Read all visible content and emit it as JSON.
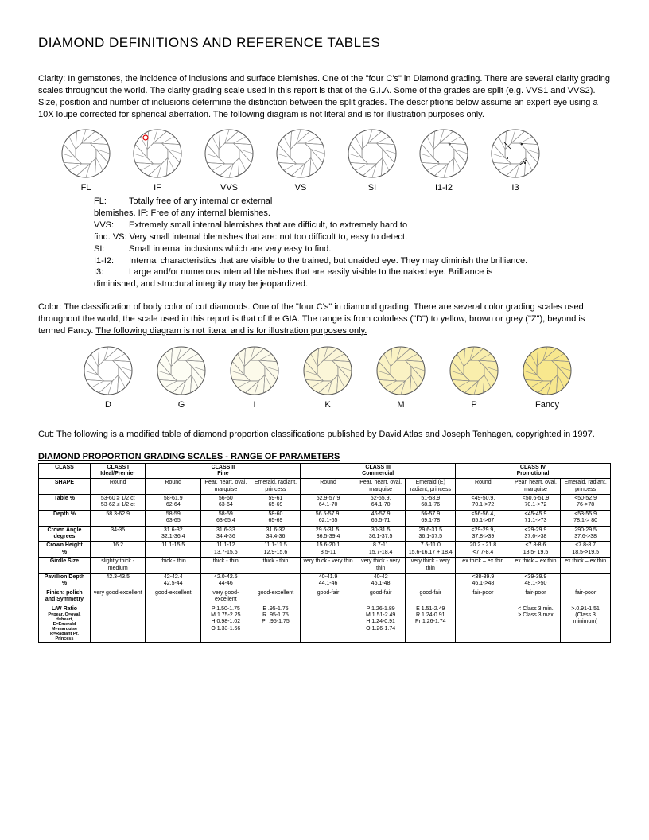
{
  "title": "DIAMOND DEFINITIONS AND REFERENCE TABLES",
  "clarity": {
    "heading": "Clarity:",
    "body": "In gemstones, the incidence of inclusions and surface blemishes. One of the \"four C's\" in Diamond grading. There are several clarity grading scales throughout the world. The clarity grading scale used in this report is that of the G.I.A. Some of the  grades are split (e.g. VVS1 and VVS2). Size, position and number of inclusions determine the distinction between the split  grades. The descriptions below assume an expert eye using a 10X loupe corrected for spherical aberration. The following  diagram is not literal and is for illustration purposes only.",
    "labels": [
      "FL",
      "IF",
      "VVS",
      "VS",
      "SI",
      "I1-I2",
      "I3"
    ],
    "defs": [
      {
        "tag": "FL:",
        "text": "Totally free of any internal or external"
      },
      {
        "tag": "",
        "text": "blemishes.  IF:   Free of any internal blemishes."
      },
      {
        "tag": "VVS:",
        "text": "Extremely small internal blemishes that are difficult, to extremely hard to"
      },
      {
        "tag": "",
        "text": "find.  VS: Very small internal blemishes that are: not too difficult to, easy to detect."
      },
      {
        "tag": "SI:",
        "text": "Small internal inclusions which are very easy to find."
      },
      {
        "tag": "I1-I2:",
        "text": "Internal characteristics that are visible to the trained, but unaided eye. They may diminish the brilliance."
      },
      {
        "tag": "I3:",
        "text": "Large and/or numerous internal blemishes that are easily visible to the naked eye. Brilliance is"
      },
      {
        "tag": "",
        "text": "diminished,   and structural integrity may be jeopardized."
      }
    ]
  },
  "color": {
    "heading": "Color:",
    "body_pre": "The classification of body color of cut diamonds. One of the \"four C's\" in diamond grading. There are several color grading  scales used throughout the world, the scale used in this report is that of the GIA. The range is from colorless (\"D\") to yellow,  brown or grey (\"Z\"), beyond is termed Fancy. ",
    "body_underline": "The following diagram is not literal and is for illustration purposes only.",
    "labels": [
      "D",
      "G",
      "I",
      "K",
      "M",
      "P",
      "Fancy"
    ],
    "fills": [
      "#ffffff",
      "#fdfdf4",
      "#fcfaea",
      "#fbf6d8",
      "#faf2c4",
      "#f9eeac",
      "#f8e88e"
    ]
  },
  "cut": {
    "heading": "Cut:",
    "body": "The following is a modified table of diamond proportion classifications published by David Atlas and Joseph Tenhagen, copyrighted in 1997."
  },
  "table": {
    "title": "DIAMOND PROPORTION GRADING SCALES - RANGE OF PARAMETERS",
    "class_headers": [
      "CLASS I\nIdeal/Premier",
      "CLASS II\nFine",
      "CLASS III\nCommercial",
      "CLASS IV\nPromotional"
    ],
    "shape_row": {
      "label": "SHAPE",
      "cells": [
        "Round",
        "Round",
        "Pear, heart, oval, marquise",
        "Emerald, radiant, princess",
        "Round",
        "Pear, heart, oval, marquise",
        "Emerald (E) radiant, princess",
        "Round",
        "Pear, heart, oval, marquise",
        "Emerald, radiant, princess"
      ]
    },
    "rows": [
      {
        "label": "Table %",
        "cells": [
          "53-60 ≥ 1/2 ct\n53-62 ≤ 1/2 ct",
          "58-61.9\n62-64",
          "56-60\n63-64",
          "59-61\n65-69",
          "52.9-57.9\n64.1-70",
          "52-55.9,\n64.1-70",
          "51-58.9\n68.1-76",
          "<49-50.9,\n70.1->72",
          "<50.6-51.9\n70.1->72",
          "<50-52.9\n76->78"
        ]
      },
      {
        "label": "Depth %",
        "cells": [
          "58.3-62.9",
          "58-59\n63-65",
          "58-59\n63-65.4",
          "58-60\n65-69",
          "56.5-57.9,\n62.1-65",
          "46-57.9\n65.5-71",
          "56-57.9\n69.1-78",
          "<56-56.4,\n65.1->67",
          "<45-45.9\n71.1->73",
          "<53-55.9\n78.1-> 80"
        ]
      },
      {
        "label": "Crown Angle\ndegrees",
        "cells": [
          "34-35",
          "31.6-32\n32.1-36.4",
          "31.6-33\n34.4-36",
          "31.6-32\n34.4-36",
          "29.6-31.5,\n36.5-39.4",
          "30-31.5\n36.1-37.5",
          "29.6-31.5\n36.1-37.5",
          "<29-29.9,\n37.8->39",
          "<29-29.9\n37.6->38",
          "290-29.5\n37.6->38"
        ]
      },
      {
        "label": "Crown Height\n%",
        "cells": [
          "16.2",
          "11.1-15.5",
          "11.1-12\n13.7-15.6",
          "11.1-11.5\n12.9-15.6",
          "15.6-20.1\n8.5-11",
          "8.7-11\n15.7-18.4",
          "7.5-11.0\n15.6-16.17 + 18.4",
          "20.2 - 21.8\n<7.7-8.4",
          "<7.8-8.6\n18.5- 19.5",
          "<7.8-8.7\n18.5->19.5"
        ]
      },
      {
        "label": "Girdle Size",
        "cells": [
          "slightly thick - medium",
          "thick - thin",
          "thick - thin",
          "thick - thin",
          "very thick - very thin",
          "very thick - very thin",
          "very thick - very thin",
          "ex thick – ex thin",
          "ex thick – ex thin",
          "ex thick – ex thin"
        ]
      },
      {
        "label": "Pavillion Depth\n%",
        "cells": [
          "42.3-43.5",
          "42-42.4\n42.5-44",
          "42.0-42.5\n44-46",
          "",
          "40-41.9\n44.1-46",
          "40-42\n46.1-48",
          "",
          "<38-39.9\n46.1->48",
          "<39-39.9\n48.1->50",
          ""
        ]
      },
      {
        "label": "Finish: polish\nand Symmetry",
        "cells": [
          "very good-excellent",
          "good-excellent",
          "very good-excellent",
          "good-excellent",
          "good-fair",
          "good-fair",
          "good-fair",
          "fair-poor",
          "fair-poor",
          "fair-poor"
        ]
      },
      {
        "label": "L/W Ratio",
        "lw": "P=pear, O=oval,\nH=heart,\nE=Emerald\nM=marquise\nR=Radiant Pr.\nPrincess",
        "cells": [
          "",
          "",
          "P 1.50-1.75\nM 1.75-2.25\nH 0.98-1.02\nO 1.33-1.66",
          "E .95-1.75\nR .95-1.75\nPr .95-1.75",
          "",
          "P 1.26-1.89\nM 1.51-2.49\nH 1.24-0.91\nO 1.26-1.74",
          "E 1.51-2.49\nR 1.24-0.91\nPr 1.26-1.74",
          "",
          "< Class 3 min.\n> Class 3 max",
          ">.0.91-1.51\n(Class 3 minimum)"
        ]
      }
    ]
  }
}
